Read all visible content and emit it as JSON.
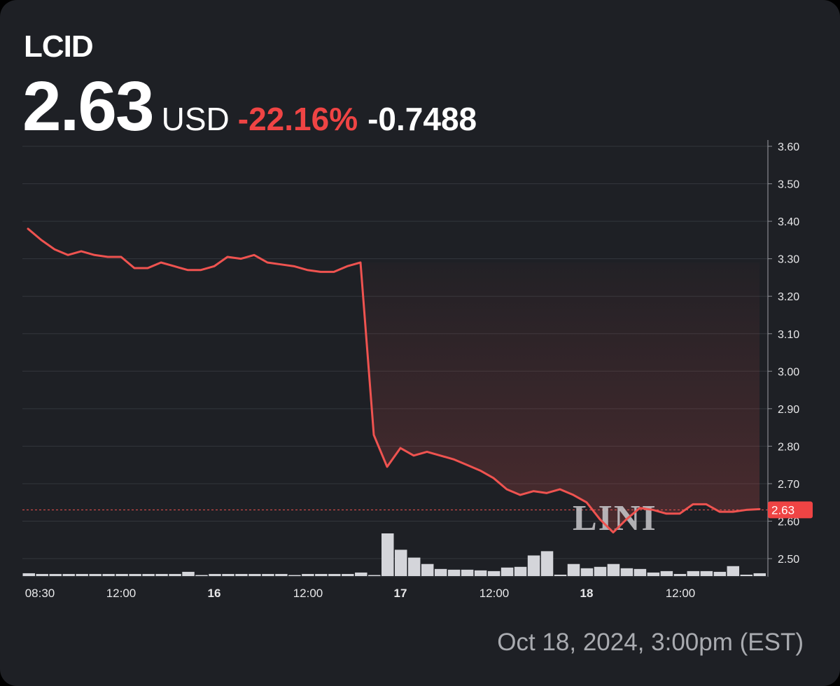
{
  "header": {
    "ticker": "LCID",
    "price": "2.63",
    "currency": "USD",
    "change_pct": "-22.16%",
    "change_abs": "-0.7488"
  },
  "colors": {
    "background": "#1e2025",
    "line": "#ef5350",
    "negative": "#ef4444",
    "volume": "#d4d5da",
    "grid": "#33363c",
    "text": "#ffffff",
    "muted": "#a9abb0"
  },
  "price_label": "2.63",
  "timestamp": "Oct 18, 2024, 3:00pm (EST)",
  "watermark": "LINI",
  "chart_data": {
    "type": "line",
    "title": "LCID",
    "xlabel": "",
    "ylabel": "USD",
    "ylim": [
      2.45,
      3.6
    ],
    "yticks": [
      3.6,
      3.5,
      3.4,
      3.3,
      3.2,
      3.1,
      3.0,
      2.9,
      2.8,
      2.7,
      2.6,
      2.5
    ],
    "ytick_labels": [
      "3.60",
      "3.50",
      "3.40",
      "3.30",
      "3.20",
      "3.10",
      "3.00",
      "2.90",
      "2.80",
      "2.70",
      "2.60",
      "2.50"
    ],
    "xtick_labels": [
      {
        "label": "08:30",
        "bold": false
      },
      {
        "label": "12:00",
        "bold": false
      },
      {
        "label": "16",
        "bold": true
      },
      {
        "label": "12:00",
        "bold": false
      },
      {
        "label": "17",
        "bold": true
      },
      {
        "label": "12:00",
        "bold": false
      },
      {
        "label": "18",
        "bold": true
      },
      {
        "label": "12:00",
        "bold": false
      }
    ],
    "grid": true,
    "current_price": 2.63,
    "series": [
      {
        "name": "Price",
        "values": [
          3.38,
          3.35,
          3.325,
          3.31,
          3.32,
          3.31,
          3.305,
          3.305,
          3.275,
          3.275,
          3.29,
          3.28,
          3.27,
          3.27,
          3.28,
          3.305,
          3.3,
          3.31,
          3.29,
          3.285,
          3.28,
          3.27,
          3.265,
          3.265,
          3.28,
          3.29,
          2.83,
          2.745,
          2.795,
          2.775,
          2.785,
          2.775,
          2.765,
          2.75,
          2.735,
          2.715,
          2.685,
          2.67,
          2.68,
          2.675,
          2.685,
          2.67,
          2.65,
          2.605,
          2.57,
          2.605,
          2.635,
          2.63,
          2.62,
          2.62,
          2.645,
          2.645,
          2.625,
          2.625,
          2.63,
          2.632
        ]
      },
      {
        "name": "Volume",
        "values": [
          4,
          3,
          3,
          3,
          3,
          3,
          3,
          3,
          3,
          3,
          3,
          3,
          6,
          1,
          3,
          3,
          3,
          3,
          3,
          3,
          1,
          3,
          3,
          3,
          3,
          5,
          1,
          60,
          37,
          26,
          17,
          10,
          9,
          9,
          8,
          7,
          12,
          13,
          29,
          35,
          2,
          17,
          11,
          13,
          17,
          11,
          10,
          5,
          7,
          3,
          7,
          7,
          6,
          14,
          2,
          4
        ]
      }
    ]
  }
}
